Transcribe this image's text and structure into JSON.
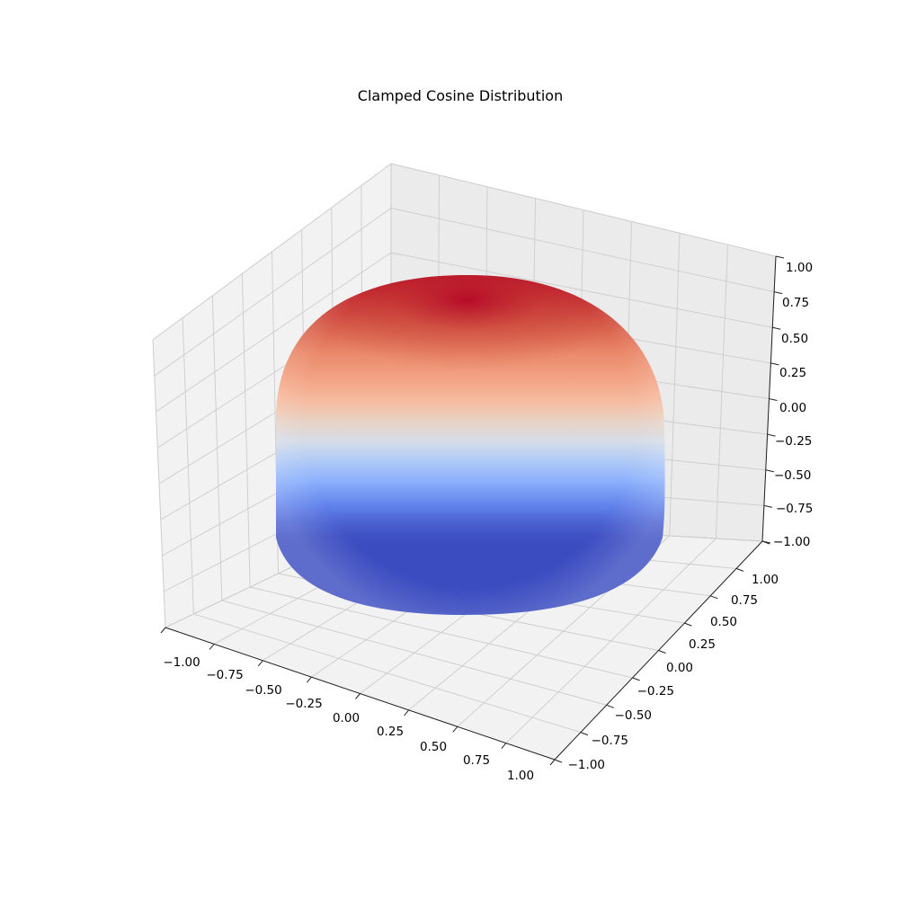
{
  "chart_data": {
    "type": "surface3d",
    "title": "Clamped Cosine Distribution",
    "xlabel": "",
    "ylabel": "",
    "zlabel": "",
    "xlim": [
      -1.0,
      1.0
    ],
    "ylim": [
      -1.0,
      1.0
    ],
    "zlim": [
      -1.0,
      1.0
    ],
    "x_ticks": [
      "−1.00",
      "−0.75",
      "−0.50",
      "−0.25",
      "0.00",
      "0.25",
      "0.50",
      "0.75",
      "1.00"
    ],
    "y_ticks": [
      "−1.00",
      "−0.75",
      "−0.50",
      "−0.25",
      "0.00",
      "0.25",
      "0.50",
      "0.75",
      "1.00"
    ],
    "z_ticks": [
      "−1.00",
      "−0.75",
      "−0.50",
      "−0.25",
      "0.00",
      "0.25",
      "0.50",
      "0.75",
      "1.00"
    ],
    "surface": "unit sphere",
    "color_value": "max(cos(theta), 0)",
    "colormap": "coolwarm",
    "colormap_stops": [
      "#3b4cc0",
      "#6788ee",
      "#9abbff",
      "#c9d7f0",
      "#dddddd",
      "#f6c4ad",
      "#f4987a",
      "#dc5d4a",
      "#b40426"
    ],
    "grid": true,
    "pane_color": "#f2f2f2",
    "grid_color": "#cccccc"
  }
}
